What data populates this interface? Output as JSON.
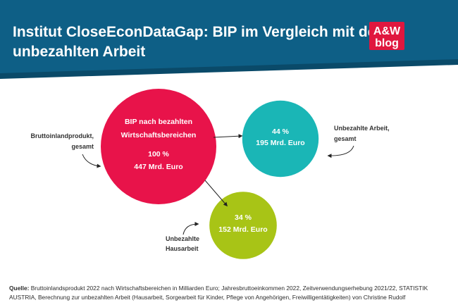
{
  "header": {
    "title_line1": "Institut CloseEconDataGap: BIP im Vergleich mit der",
    "title_line2": "unbezahlten Arbeit",
    "logo_line1": "A&W",
    "logo_line2": "blog"
  },
  "colors": {
    "header_bg": "#0e5f86",
    "header_shadow": "#0a4a69",
    "logo_bg": "#e0173f",
    "pink": "#e8134a",
    "teal": "#1ab6b6",
    "green": "#a8c416"
  },
  "chart_data": {
    "type": "bubble",
    "title": "Institut CloseEconDataGap: BIP im Vergleich mit der unbezahlten Arbeit",
    "unit": "Mrd. Euro",
    "bubbles": [
      {
        "id": "bip",
        "label_line1": "BIP nach bezahlten",
        "label_line2": "Wirtschaftsbereichen",
        "percent_label": "100 %",
        "value": 447,
        "value_label": "447 Mrd. Euro",
        "percent": 100,
        "color": "#e8134a"
      },
      {
        "id": "unbezahlt",
        "percent_label": "44 %",
        "value": 195,
        "value_label": "195 Mrd. Euro",
        "percent": 44,
        "color": "#1ab6b6"
      },
      {
        "id": "hausarbeit",
        "percent_label": "34 %",
        "value": 152,
        "value_label": "152 Mrd. Euro",
        "percent": 34,
        "color": "#a8c416"
      }
    ],
    "annotations": [
      {
        "target": "bip",
        "line1": "Bruttoinlandprodukt,",
        "line2": "gesamt"
      },
      {
        "target": "unbezahlt",
        "line1": "Unbezahlte Arbeit,",
        "line2": "gesamt"
      },
      {
        "target": "hausarbeit",
        "line1": "Unbezahlte",
        "line2": "Hausarbeit"
      }
    ]
  },
  "source": {
    "label": "Quelle:",
    "text": "Bruttoinlandsprodukt 2022 nach Wirtschaftsbereichen in Milliarden Euro; Jahresbruttoeinkommen 2022, Zeitverwendungserhebung 2021/22, STATISTIK AUSTRIA, Berechnung zur unbezahlten Arbeit (Hausarbeit, Sorgearbeit für Kinder, Pflege von Angehörigen, Freiwilligentätigkeiten) von Christine Rudolf"
  }
}
